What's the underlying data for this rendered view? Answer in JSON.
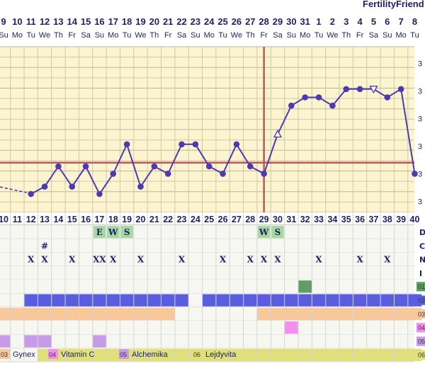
{
  "brand": "FertilityFriend",
  "chart_data": {
    "type": "line",
    "title": "",
    "dates": [
      "9",
      "10",
      "11",
      "12",
      "13",
      "14",
      "15",
      "16",
      "17",
      "18",
      "19",
      "20",
      "21",
      "22",
      "23",
      "24",
      "25",
      "26",
      "27",
      "28",
      "29",
      "30",
      "31",
      "1",
      "2",
      "3",
      "4",
      "5",
      "6",
      "7",
      "8"
    ],
    "weekdays": [
      "Su",
      "Mo",
      "Tu",
      "We",
      "Th",
      "Fr",
      "Sa",
      "Su",
      "Mo",
      "Tu",
      "We",
      "Th",
      "Fr",
      "Sa",
      "Su",
      "Mo",
      "Tu",
      "We",
      "Th",
      "Fr",
      "Sa",
      "Su",
      "Mo",
      "Tu",
      "We",
      "Th",
      "Fr",
      "Sa",
      "Su",
      "Mo",
      "Tu"
    ],
    "cycle_days": [
      "10",
      "11",
      "12",
      "13",
      "14",
      "15",
      "16",
      "17",
      "18",
      "19",
      "20",
      "21",
      "22",
      "23",
      "24",
      "25",
      "26",
      "27",
      "28",
      "29",
      "30",
      "31",
      "32",
      "33",
      "34",
      "35",
      "36",
      "37",
      "38",
      "39",
      "40"
    ],
    "temps_by_cd": {
      "12": 2.0,
      "13": 2.8,
      "14": 5.0,
      "15": 2.8,
      "16": 5.0,
      "17": 2.0,
      "18": 4.2,
      "19": 7.4,
      "20": 2.8,
      "21": 5.0,
      "22": 4.2,
      "23": 7.4,
      "24": 7.4,
      "25": 5.0,
      "26": 4.2,
      "27": 7.4,
      "28": 5.0,
      "29": 4.2,
      "30": 8.5,
      "31": 11.6,
      "32": 12.5,
      "33": 12.5,
      "34": 11.6,
      "35": 13.4,
      "36": 13.4,
      "37": 13.4,
      "38": 12.5,
      "39": 13.4,
      "40": 4.2
    },
    "open_triangle_days": [
      "30",
      "37"
    ],
    "coverline": 5.4,
    "ovulation_day": "29",
    "ylim": [
      0,
      18
    ],
    "y_tick_label": "3",
    "y_ticks": [
      1.2,
      4.2,
      7.2,
      10.2,
      13.2,
      16.2
    ],
    "rows": {
      "codes": [
        "D",
        "C",
        "N",
        "I"
      ],
      "cervical_fluid": {
        "17": "E",
        "18": "W",
        "19": "S",
        "29": "W",
        "30": "S"
      },
      "notes": {
        "13": "#"
      },
      "intercourse": {
        "12": "X",
        "13": "X",
        "15": "X",
        "17": "XX",
        "18": "X",
        "20": "X",
        "23": "X",
        "26": "X",
        "28": "X",
        "29": "X",
        "30": "X",
        "33": "X",
        "36": "X",
        "38": "X"
      }
    },
    "med_rows": [
      {
        "code": "01",
        "color": "#5f9f65",
        "days": [
          "32"
        ]
      },
      {
        "code": "02",
        "color": "#5a5de0",
        "days": [
          "12",
          "13",
          "14",
          "15",
          "16",
          "17",
          "18",
          "19",
          "20",
          "21",
          "22",
          "23",
          "25",
          "26",
          "27",
          "28",
          "29",
          "30",
          "31",
          "32",
          "33",
          "34",
          "35",
          "36",
          "37",
          "38",
          "39",
          "40"
        ]
      },
      {
        "code": "03",
        "color": "#f8c89a",
        "days": [
          "10",
          "11",
          "12",
          "13",
          "14",
          "15",
          "16",
          "17",
          "18",
          "19",
          "20",
          "21",
          "22",
          "29",
          "30",
          "31",
          "32",
          "33",
          "34",
          "35",
          "36",
          "37",
          "38",
          "39",
          "40"
        ]
      },
      {
        "code": "04",
        "color": "#f48ff0",
        "days": [
          "31"
        ]
      },
      {
        "code": "05",
        "color": "#c69ce9",
        "days": [
          "10",
          "12",
          "13",
          "17"
        ]
      },
      {
        "code": "06",
        "color": "#dfe07a",
        "days": [
          "13",
          "14",
          "15",
          "16",
          "17",
          "18",
          "19",
          "20",
          "21",
          "22",
          "23",
          "24",
          "25",
          "26",
          "27",
          "28",
          "29",
          "30",
          "31",
          "32",
          "33",
          "34",
          "35",
          "36",
          "37",
          "38",
          "39",
          "40"
        ]
      }
    ],
    "legend": [
      {
        "code": "03",
        "name": "Gynex",
        "color": "#f8c89a"
      },
      {
        "code": "04",
        "name": "Vitamin C",
        "color": "#f48ff0"
      },
      {
        "code": "05",
        "name": "Alchemika",
        "color": "#c69ce9"
      },
      {
        "code": "06",
        "name": "Lejdyvita",
        "color": "#dfe07a"
      }
    ]
  },
  "colors": {
    "plot_bg": "#fbf4cf",
    "grid": "#cfc8aa",
    "grid_major": "#bdb595",
    "line": "#4b3ab0",
    "coverline": "#c2555a",
    "ovulation": "#c2555a",
    "text": "#1f1f66",
    "cf_fill": "#a8d8a0",
    "row_bg": "#ececec"
  }
}
